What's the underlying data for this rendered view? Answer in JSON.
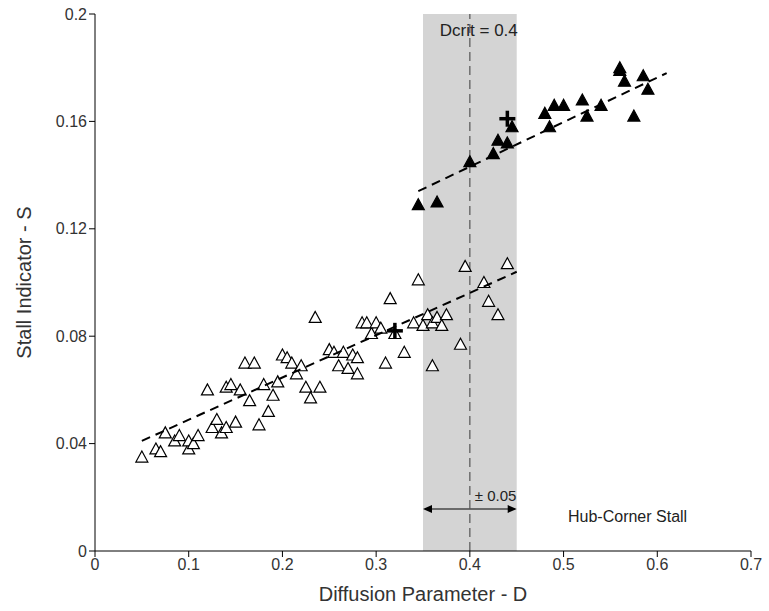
{
  "chart_data": {
    "type": "scatter",
    "x_label": "Diffusion Parameter - D",
    "y_label": "Stall Indicator - S",
    "xlim": [
      0,
      0.7
    ],
    "ylim": [
      0,
      0.2
    ],
    "xticks": [
      0,
      0.1,
      0.2,
      0.3,
      0.4,
      0.5,
      0.6,
      0.7
    ],
    "yticks": [
      0,
      0.04,
      0.08,
      0.12,
      0.16,
      0.2
    ],
    "grid": false,
    "shaded_band": [
      0.35,
      0.45
    ],
    "vline": 0.4,
    "annotations": {
      "critical": "Dcrit = 0.4",
      "band": "± 0.05",
      "stall": "Hub-Corner Stall"
    },
    "series": [
      {
        "type": "scatter",
        "marker": "triangle_open",
        "color": "#000000",
        "x": [
          0.05,
          0.065,
          0.07,
          0.075,
          0.085,
          0.09,
          0.1,
          0.1,
          0.105,
          0.11,
          0.12,
          0.125,
          0.13,
          0.135,
          0.14,
          0.14,
          0.145,
          0.15,
          0.155,
          0.16,
          0.165,
          0.17,
          0.175,
          0.18,
          0.185,
          0.19,
          0.195,
          0.2,
          0.205,
          0.21,
          0.215,
          0.22,
          0.225,
          0.23,
          0.235,
          0.24,
          0.25,
          0.255,
          0.26,
          0.265,
          0.27,
          0.275,
          0.28,
          0.28,
          0.285,
          0.29,
          0.295,
          0.3,
          0.305,
          0.31,
          0.315,
          0.32,
          0.33,
          0.34,
          0.345,
          0.35,
          0.355,
          0.36,
          0.36,
          0.365,
          0.37,
          0.375,
          0.39,
          0.395,
          0.415,
          0.42,
          0.43,
          0.44
        ],
        "y": [
          0.035,
          0.038,
          0.037,
          0.044,
          0.041,
          0.043,
          0.038,
          0.041,
          0.04,
          0.043,
          0.06,
          0.046,
          0.049,
          0.044,
          0.046,
          0.061,
          0.062,
          0.048,
          0.06,
          0.07,
          0.056,
          0.07,
          0.047,
          0.062,
          0.052,
          0.058,
          0.063,
          0.073,
          0.072,
          0.07,
          0.066,
          0.069,
          0.061,
          0.057,
          0.087,
          0.061,
          0.075,
          0.074,
          0.069,
          0.074,
          0.068,
          0.073,
          0.072,
          0.066,
          0.085,
          0.085,
          0.081,
          0.085,
          0.083,
          0.07,
          0.094,
          0.081,
          0.074,
          0.085,
          0.101,
          0.084,
          0.088,
          0.069,
          0.085,
          0.087,
          0.084,
          0.088,
          0.077,
          0.106,
          0.1,
          0.093,
          0.088,
          0.107
        ]
      },
      {
        "type": "scatter",
        "marker": "triangle_filled",
        "color": "#000000",
        "x": [
          0.345,
          0.365,
          0.4,
          0.425,
          0.43,
          0.44,
          0.445,
          0.48,
          0.485,
          0.49,
          0.5,
          0.52,
          0.525,
          0.54,
          0.56,
          0.56,
          0.565,
          0.575,
          0.585,
          0.59
        ],
        "y": [
          0.129,
          0.13,
          0.145,
          0.148,
          0.153,
          0.152,
          0.158,
          0.163,
          0.158,
          0.166,
          0.166,
          0.168,
          0.162,
          0.166,
          0.179,
          0.18,
          0.175,
          0.162,
          0.177,
          0.172
        ]
      },
      {
        "type": "scatter",
        "marker": "plus",
        "color": "#000000",
        "x": [
          0.32,
          0.44
        ],
        "y": [
          0.082,
          0.161
        ]
      },
      {
        "type": "line",
        "line_style": "dashed",
        "color": "#000000",
        "x": [
          0.05,
          0.45
        ],
        "y": [
          0.041,
          0.104
        ]
      },
      {
        "type": "line",
        "line_style": "dashed",
        "color": "#000000",
        "x": [
          0.345,
          0.61
        ],
        "y": [
          0.134,
          0.178
        ]
      }
    ]
  }
}
